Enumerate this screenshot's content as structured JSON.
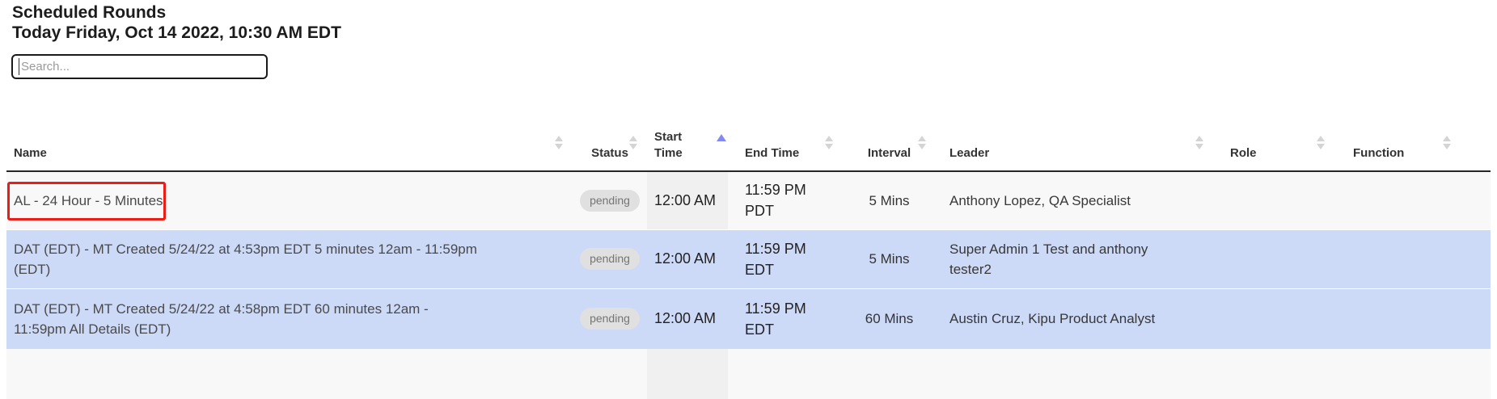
{
  "page": {
    "title_line1": "Scheduled Rounds",
    "title_line2": "Today Friday, Oct 14 2022, 10:30 AM EDT"
  },
  "search": {
    "placeholder": "Search..."
  },
  "table": {
    "columns": [
      {
        "key": "name",
        "label": "Name",
        "sort": "none"
      },
      {
        "key": "status",
        "label": "Status",
        "sort": "none"
      },
      {
        "key": "start_time",
        "label": "Start\nTime",
        "sort": "asc"
      },
      {
        "key": "end_time",
        "label": "End Time",
        "sort": "none"
      },
      {
        "key": "interval",
        "label": "Interval",
        "sort": "none"
      },
      {
        "key": "leader",
        "label": "Leader",
        "sort": "none"
      },
      {
        "key": "role",
        "label": "Role",
        "sort": "none"
      },
      {
        "key": "function",
        "label": "Function",
        "sort": "none"
      }
    ],
    "rows": [
      {
        "name": "AL - 24 Hour - 5 Minutes",
        "status": "pending",
        "start_time": "12:00 AM",
        "end_time": "11:59 PM\nPDT",
        "interval": "5 Mins",
        "leader": "Anthony Lopez, QA Specialist",
        "role": "",
        "function": "",
        "highlighted": false,
        "annotated": true
      },
      {
        "name": "DAT (EDT) - MT Created 5/24/22 at 4:53pm EDT 5 minutes 12am - 11:59pm\n(EDT)",
        "status": "pending",
        "start_time": "12:00 AM",
        "end_time": "11:59 PM\nEDT",
        "interval": "5 Mins",
        "leader": "Super Admin 1 Test and anthony\ntester2",
        "role": "",
        "function": "",
        "highlighted": true,
        "annotated": false
      },
      {
        "name": "DAT (EDT) - MT Created 5/24/22 at 4:58pm EDT 60 minutes 12am -\n11:59pm All Details (EDT)",
        "status": "pending",
        "start_time": "12:00 AM",
        "end_time": "11:59 PM\nEDT",
        "interval": "60 Mins",
        "leader": "Austin Cruz, Kipu Product Analyst",
        "role": "",
        "function": "",
        "highlighted": true,
        "annotated": false
      }
    ],
    "colors": {
      "selected_row": "#ccd9f7",
      "status_badge_bg": "#e0e0e0",
      "status_badge_text": "#757575",
      "active_sort_arrow": "#8289f3",
      "annotation_box": "#ec1c17"
    }
  }
}
